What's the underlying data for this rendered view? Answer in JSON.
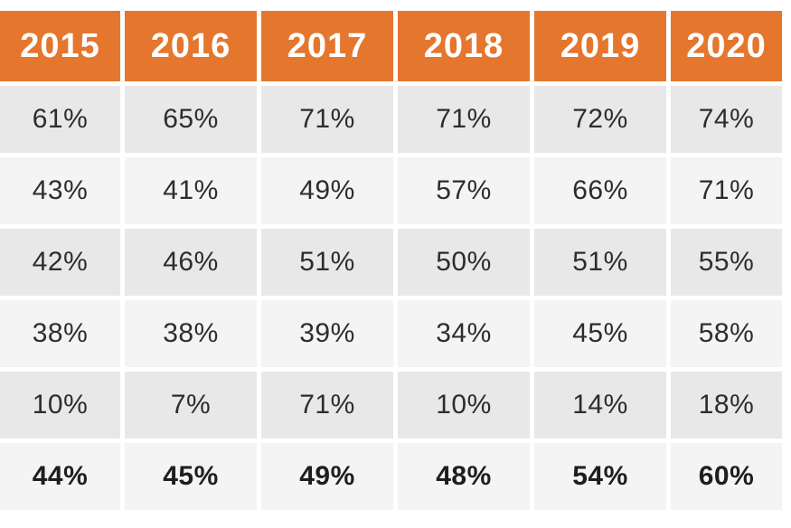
{
  "table": {
    "headers": [
      "2015",
      "2016",
      "2017",
      "2018",
      "2019",
      "2020"
    ],
    "rows": [
      {
        "cells": [
          "61%",
          "65%",
          "71%",
          "71%",
          "72%",
          "74%"
        ],
        "shade": "dark",
        "bold": false
      },
      {
        "cells": [
          "43%",
          "41%",
          "49%",
          "57%",
          "66%",
          "71%"
        ],
        "shade": "light",
        "bold": false
      },
      {
        "cells": [
          "42%",
          "46%",
          "51%",
          "50%",
          "51%",
          "55%"
        ],
        "shade": "dark",
        "bold": false
      },
      {
        "cells": [
          "38%",
          "38%",
          "39%",
          "34%",
          "45%",
          "58%"
        ],
        "shade": "light",
        "bold": false
      },
      {
        "cells": [
          "10%",
          "7%",
          "71%",
          "10%",
          "14%",
          "18%"
        ],
        "shade": "dark",
        "bold": false
      },
      {
        "cells": [
          "44%",
          "45%",
          "49%",
          "48%",
          "54%",
          "60%"
        ],
        "shade": "light",
        "bold": true
      }
    ],
    "colors": {
      "header_bg": "#E5762D",
      "header_text": "#FFFFFF",
      "row_dark": "#E8E8E8",
      "row_light": "#F4F4F4",
      "cell_text": "#2D2D2D"
    }
  },
  "chart_data": {
    "type": "table",
    "columns": [
      "2015",
      "2016",
      "2017",
      "2018",
      "2019",
      "2020"
    ],
    "rows_percent": [
      [
        61,
        65,
        71,
        71,
        72,
        74
      ],
      [
        43,
        41,
        49,
        57,
        66,
        71
      ],
      [
        42,
        46,
        51,
        50,
        51,
        55
      ],
      [
        38,
        38,
        39,
        34,
        45,
        58
      ],
      [
        10,
        7,
        71,
        10,
        14,
        18
      ],
      [
        44,
        45,
        49,
        48,
        54,
        60
      ]
    ],
    "summary_row_index": 5,
    "legend_position": "none",
    "grid": "cell-gaps-white"
  }
}
